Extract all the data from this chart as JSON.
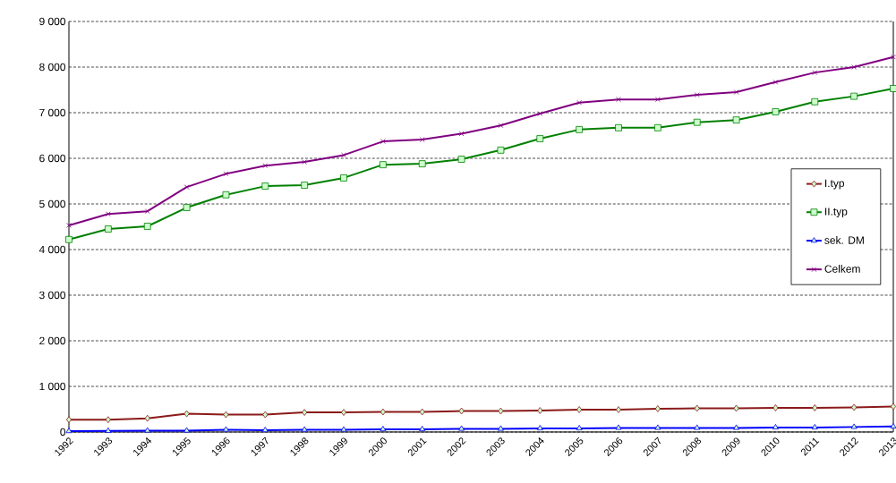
{
  "chart_data": {
    "type": "line",
    "categories": [
      "1992",
      "1993",
      "1994",
      "1995",
      "1996",
      "1997",
      "1998",
      "1999",
      "2000",
      "2001",
      "2002",
      "2003",
      "2004",
      "2005",
      "2006",
      "2007",
      "2008",
      "2009",
      "2010",
      "2011",
      "2012",
      "2013"
    ],
    "series": [
      {
        "name": "I.typ",
        "color": "#8b1a1a",
        "marker": "diamond",
        "values": [
          270,
          270,
          300,
          400,
          380,
          380,
          430,
          430,
          440,
          440,
          460,
          460,
          470,
          490,
          490,
          510,
          520,
          520,
          530,
          530,
          540,
          560
        ]
      },
      {
        "name": "II.typ",
        "color": "#008000",
        "marker": "square",
        "values": [
          4220,
          4450,
          4510,
          4920,
          5200,
          5390,
          5410,
          5570,
          5860,
          5880,
          5980,
          6180,
          6430,
          6630,
          6670,
          6670,
          6790,
          6840,
          7020,
          7240,
          7360,
          7530
        ]
      },
      {
        "name": "sek. DM",
        "color": "#0000ff",
        "marker": "triangle",
        "values": [
          20,
          25,
          30,
          30,
          50,
          40,
          50,
          50,
          60,
          60,
          70,
          70,
          80,
          80,
          90,
          90,
          90,
          90,
          100,
          100,
          110,
          120
        ]
      },
      {
        "name": "Celkem",
        "color": "#800080",
        "marker": "cross",
        "values": [
          4530,
          4780,
          4840,
          5370,
          5660,
          5840,
          5920,
          6070,
          6370,
          6410,
          6540,
          6720,
          6980,
          7220,
          7290,
          7290,
          7390,
          7450,
          7670,
          7880,
          8000,
          8220
        ]
      }
    ],
    "ylim": [
      0,
      9000
    ],
    "yticks": [
      0,
      {
        "value": 1000,
        "label": "1 000"
      },
      {
        "value": 2000,
        "label": "2 000"
      },
      {
        "value": 3000,
        "label": "3 000"
      },
      {
        "value": 4000,
        "label": "4 000"
      },
      {
        "value": 5000,
        "label": "5 000"
      },
      {
        "value": 6000,
        "label": "6 000"
      },
      {
        "value": 7000,
        "label": "7 000"
      },
      {
        "value": 8000,
        "label": "8 000"
      },
      {
        "value": 9000,
        "label": "9 000"
      }
    ],
    "grid": "y",
    "legend": "center right"
  }
}
